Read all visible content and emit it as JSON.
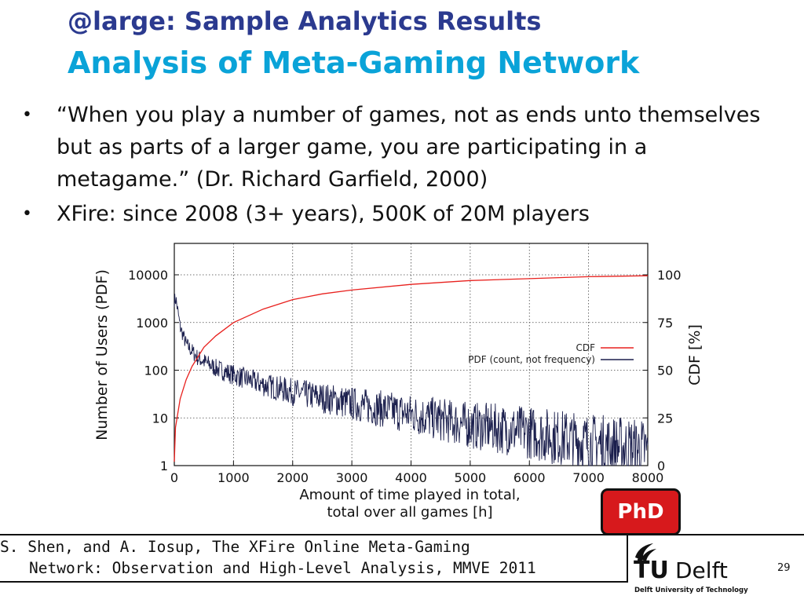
{
  "title": {
    "line1": "@large: Sample Analytics Results",
    "line2": "Analysis of Meta-Gaming Network"
  },
  "bullets": [
    "“When you play a number of games, not as ends unto themselves but as parts of a larger game, you are participating in a metagame.” (Dr. Richard Garfield, 2000)",
    "XFire: since 2008 (3+ years), 500K of 20M players"
  ],
  "chart_data": {
    "type": "line",
    "xlabel": [
      "Amount of time played in total,",
      "total over all games [h]"
    ],
    "ylabel_left": "Number of Users (PDF)",
    "ylabel_right": "CDF [%]",
    "x_ticks": [
      "0",
      "1000",
      "2000",
      "3000",
      "4000",
      "5000",
      "6000",
      "7000",
      "8000"
    ],
    "y_left_ticks": [
      "1",
      "10",
      "100",
      "1000",
      "10000"
    ],
    "y_right_ticks": [
      "0",
      "25",
      "50",
      "75",
      "100"
    ],
    "xlim": [
      0,
      8000
    ],
    "ylim_left": [
      1,
      10000
    ],
    "ylim_left_scale": "log",
    "ylim_right": [
      0,
      100
    ],
    "grid": true,
    "legend_position": "top-right",
    "series": [
      {
        "name": "CDF",
        "color": "#e8211e",
        "axis": "right",
        "x": [
          0,
          20,
          100,
          200,
          300,
          500,
          700,
          1000,
          1500,
          2000,
          2500,
          3000,
          4000,
          5000,
          6000,
          7000,
          8000
        ],
        "values": [
          2,
          20,
          35,
          45,
          52,
          62,
          68,
          75,
          82,
          87,
          90,
          92,
          95,
          97,
          98,
          99,
          99.5
        ]
      },
      {
        "name": "PDF (count, not frequency)",
        "color": "#1b1f4d",
        "axis": "left",
        "x": [
          0,
          30,
          100,
          200,
          400,
          700,
          1000,
          1500,
          2000,
          3000,
          4000,
          5000,
          6000,
          7000,
          8000
        ],
        "values": [
          3000,
          3000,
          800,
          350,
          180,
          110,
          80,
          50,
          35,
          20,
          12,
          7,
          5,
          3,
          2
        ]
      }
    ]
  },
  "badge": {
    "label": "PhD",
    "color": "#d7191c"
  },
  "citation": {
    "line1": "S. Shen, and A. Iosup, The XFire Online Meta-Gaming",
    "line2": "Network: Observation and High-Level Analysis, MMVE 2011"
  },
  "logo": {
    "text_tu": "TU",
    "text_delft": "Delft",
    "subtitle": "Delft University of Technology"
  },
  "page_number": "29",
  "icons": {
    "logo_mark": "flame-icon"
  }
}
